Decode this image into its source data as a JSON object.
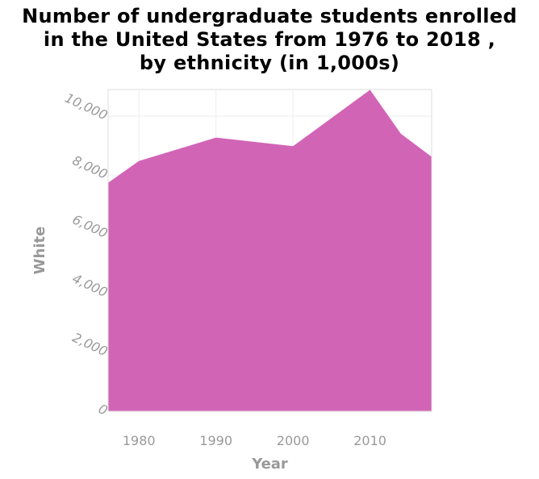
{
  "title_lines": [
    "Number of undergraduate students enrolled",
    "in the United States from 1976 to 2018 ,",
    "by ethnicity (in 1,000s)"
  ],
  "chart_data": {
    "type": "area",
    "title": "Number of undergraduate students enrolled in the United States from 1976 to 2018 , by ethnicity (in 1,000s)",
    "xlabel": "Year",
    "ylabel": "White",
    "xlim": [
      1976,
      2018
    ],
    "ylim": [
      0,
      10900
    ],
    "x_ticks": [
      1980,
      1990,
      2000,
      2010
    ],
    "x_tick_labels": [
      "1980",
      "1990",
      "2000",
      "2010"
    ],
    "y_ticks": [
      0,
      2000,
      4000,
      6000,
      8000,
      10000
    ],
    "y_tick_labels": [
      "0",
      "2,000",
      "4,000",
      "6,000",
      "8,000",
      "10,000"
    ],
    "grid": true,
    "color": "#d264b6",
    "series": [
      {
        "x": [
          1976,
          1980,
          1990,
          2000,
          2010,
          2014,
          2018
        ],
        "values": [
          7740,
          8480,
          9270,
          8980,
          10890,
          9400,
          8620
        ]
      }
    ]
  }
}
